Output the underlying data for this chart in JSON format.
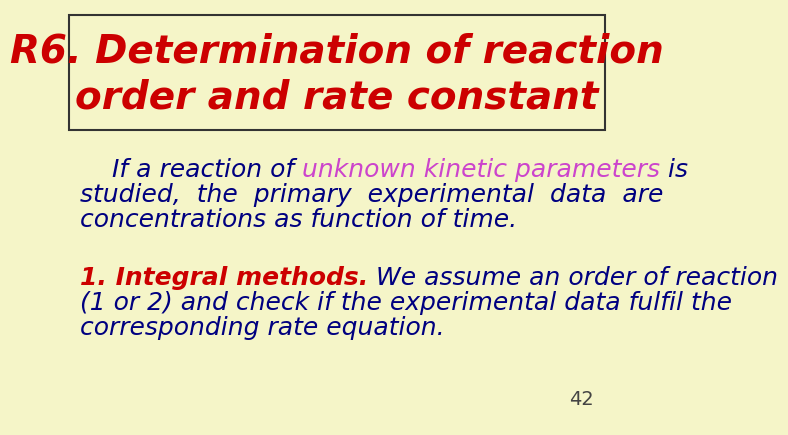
{
  "background_color": "#f5f5c8",
  "title_line1": "R6. Determination of reaction",
  "title_line2": "order and rate constant",
  "title_color": "#cc0000",
  "title_fontsize": 28,
  "box_color": "#333333",
  "para_color_navy": "#000080",
  "para_color_magenta": "#cc44cc",
  "para_color_red": "#cc0000",
  "para1_line1_a": "    If a reaction of ",
  "para1_line1_b": "unknown kinetic parameters",
  "para1_line1_c": " is",
  "para1_line2": "studied,  the  primary  experimental  data  are",
  "para1_line3": "concentrations as function of time.",
  "para2_bold_text": "1. Integral methods.",
  "para2_rest_line1": " We assume an order of reaction",
  "para2_line2": "(1 or 2) and check if the experimental data fulfil the",
  "para2_line3": "corresponding rate equation.",
  "page_number": "42",
  "page_number_color": "#444444",
  "para_fontsize": 18
}
